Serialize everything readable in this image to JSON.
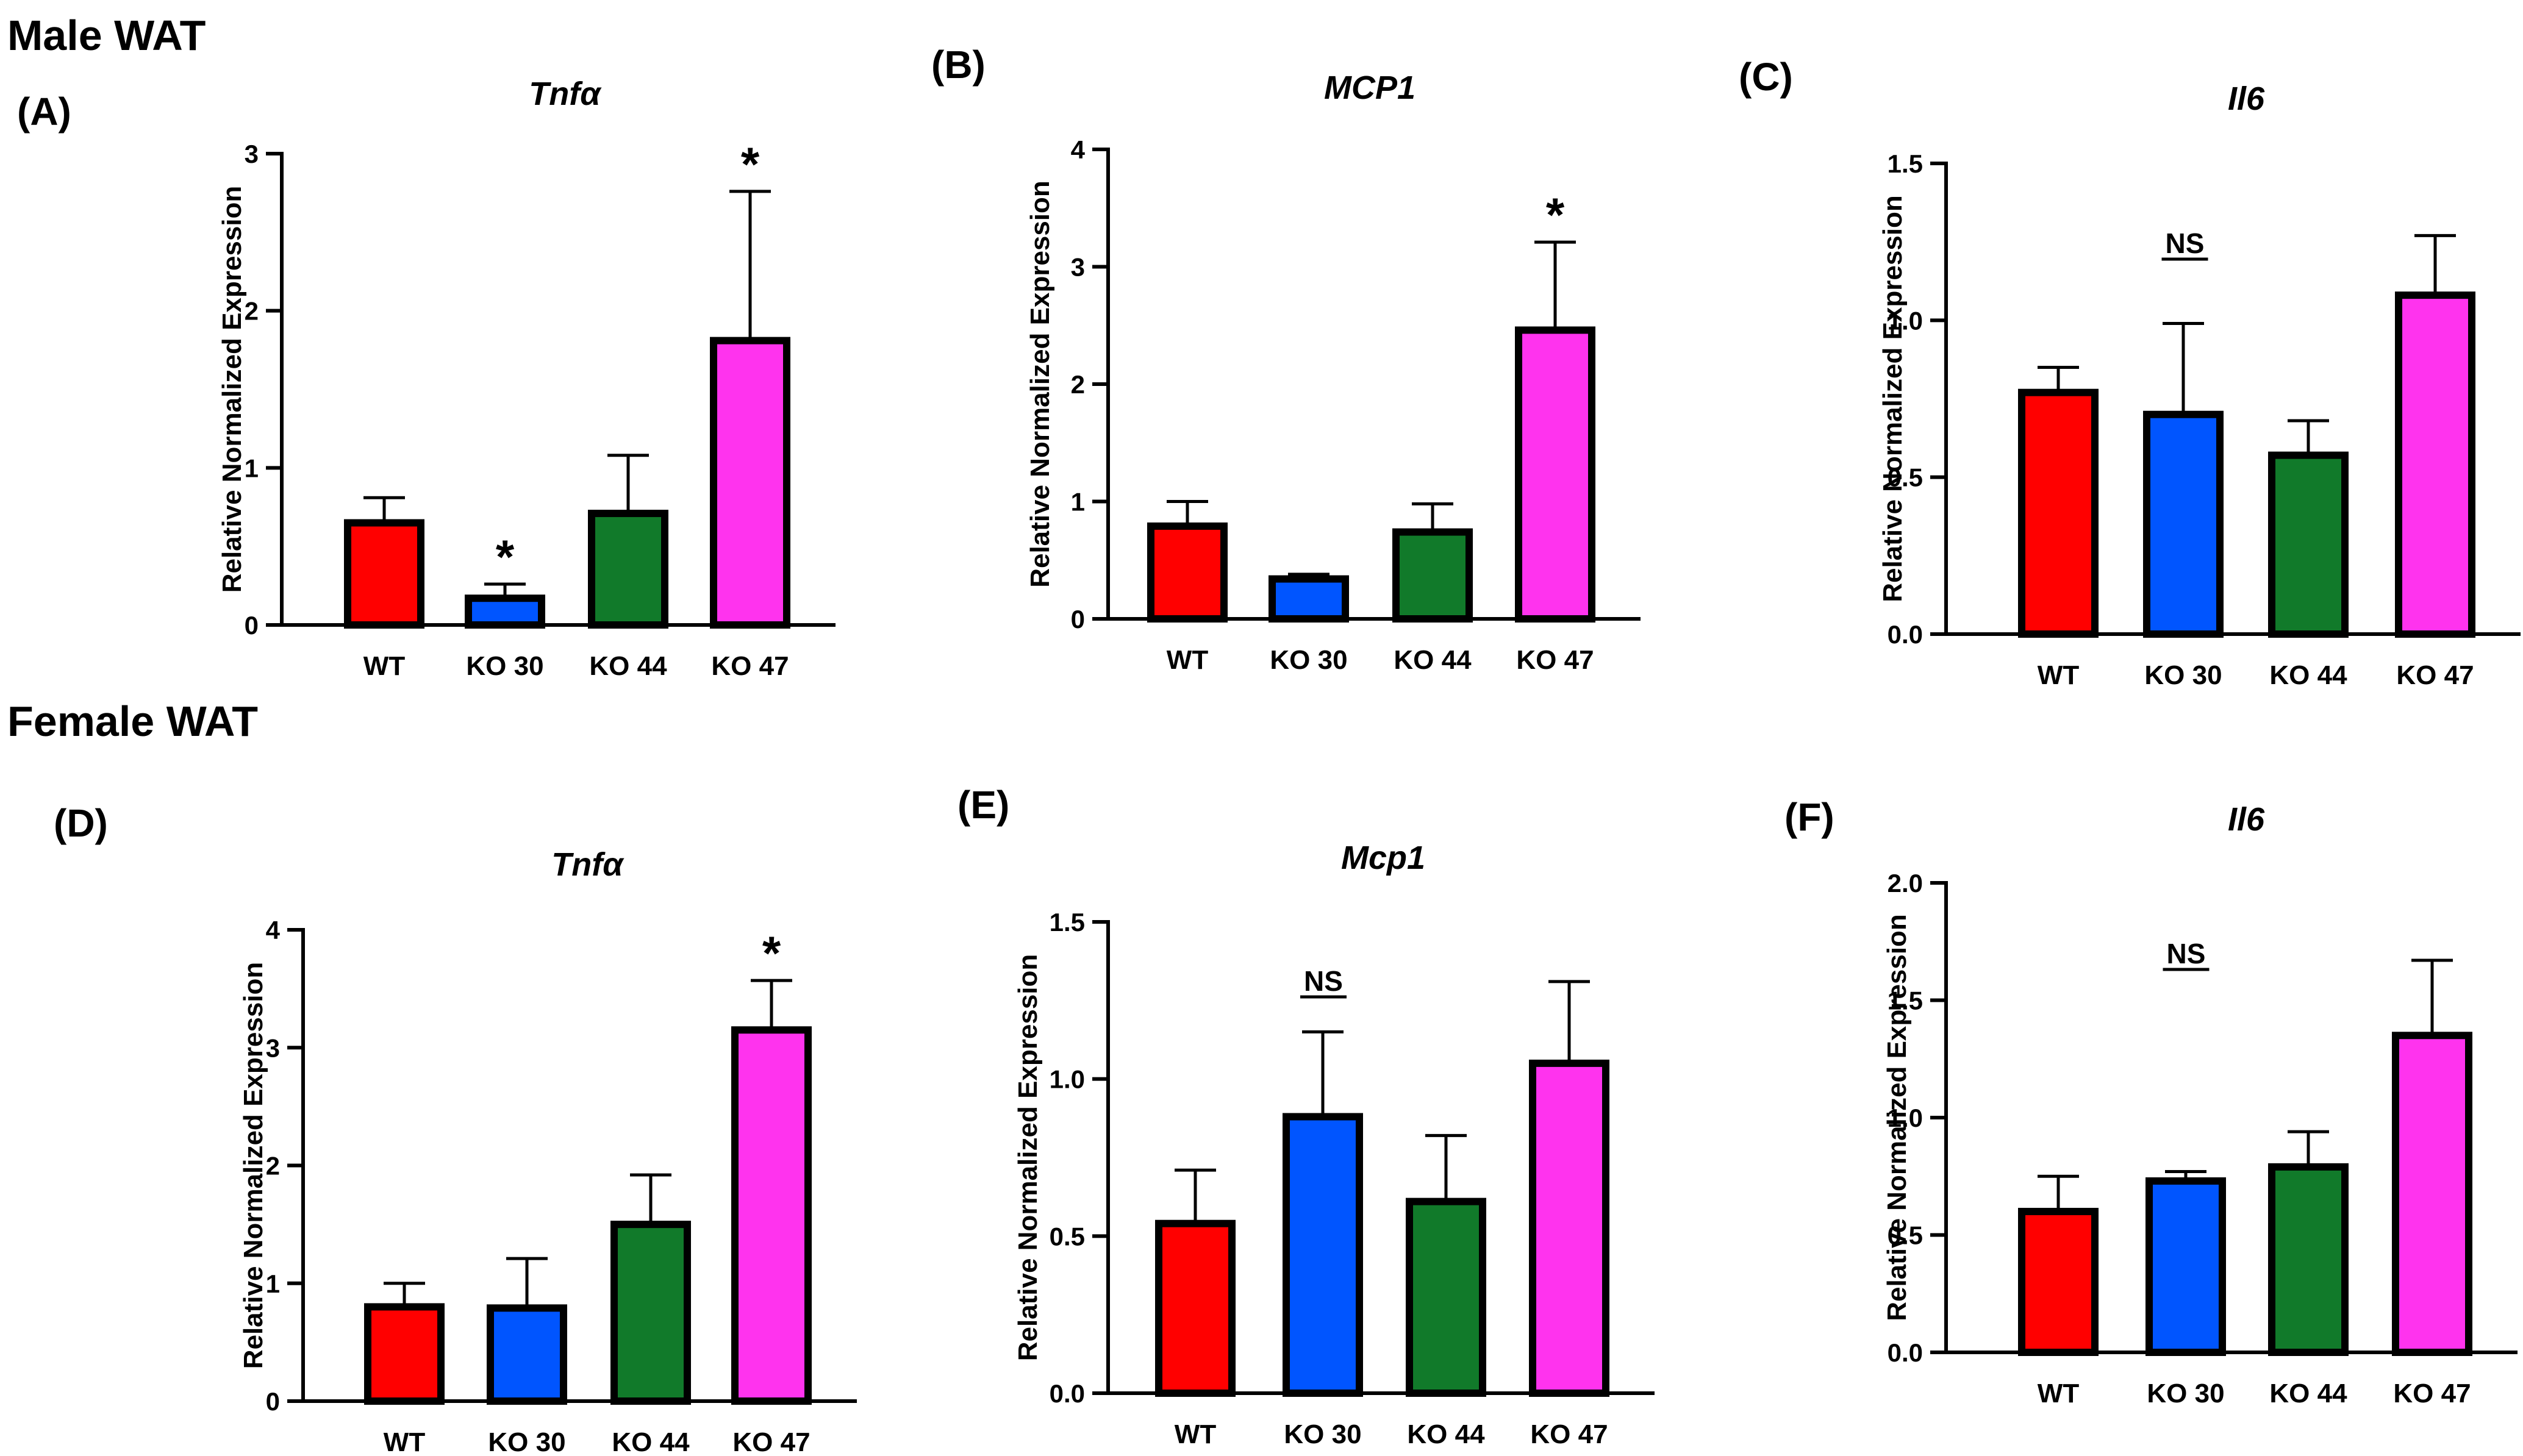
{
  "sections": {
    "male": "Male WAT",
    "female": "Female WAT"
  },
  "colors": {
    "WT": "#ff0000",
    "KO 30": "#0055ff",
    "KO 44": "#117a2a",
    "KO 47": "#ff33ee"
  },
  "chart_data": [
    {
      "id": "A",
      "label": "(A)",
      "type": "bar",
      "title": "Tnfα",
      "ylabel": "Relative Normalized Expression",
      "categories": [
        "WT",
        "KO 30",
        "KO 44",
        "KO 47"
      ],
      "values": [
        0.65,
        0.17,
        0.71,
        1.81
      ],
      "errors": [
        0.16,
        0.09,
        0.37,
        0.95
      ],
      "ylim": [
        0,
        3
      ],
      "yticks": [
        "0",
        "1",
        "2",
        "3"
      ],
      "annotations": [
        "",
        "*",
        "",
        "*"
      ]
    },
    {
      "id": "B",
      "label": "(B)",
      "type": "bar",
      "title": "MCP1",
      "ylabel": "Relative Normalized Expression",
      "categories": [
        "WT",
        "KO 30",
        "KO 44",
        "KO 47"
      ],
      "values": [
        0.79,
        0.34,
        0.74,
        2.46
      ],
      "errors": [
        0.21,
        0.04,
        0.24,
        0.75
      ],
      "ylim": [
        0,
        4
      ],
      "yticks": [
        "0",
        "1",
        "2",
        "3",
        "4"
      ],
      "annotations": [
        "",
        "",
        "",
        "*"
      ]
    },
    {
      "id": "C",
      "label": "(C)",
      "type": "bar",
      "title": "Il6",
      "ylabel": "Relative Normalized Expression",
      "categories": [
        "WT",
        "KO 30",
        "KO 44",
        "KO 47"
      ],
      "values": [
        0.77,
        0.7,
        0.57,
        1.08
      ],
      "errors": [
        0.08,
        0.29,
        0.11,
        0.19
      ],
      "ylim": [
        0,
        1.5
      ],
      "yticks": [
        "0.0",
        "0.5",
        "1.0",
        "1.5"
      ],
      "note": "NS"
    },
    {
      "id": "D",
      "label": "(D)",
      "type": "bar",
      "title": "Tnfα",
      "ylabel": "Relative Normalized Expression",
      "categories": [
        "WT",
        "KO 30",
        "KO 44",
        "KO 47"
      ],
      "values": [
        0.8,
        0.79,
        1.5,
        3.15
      ],
      "errors": [
        0.2,
        0.42,
        0.42,
        0.42
      ],
      "ylim": [
        0,
        4
      ],
      "yticks": [
        "0",
        "1",
        "2",
        "3",
        "4"
      ],
      "annotations": [
        "",
        "",
        "",
        "*"
      ]
    },
    {
      "id": "E",
      "label": "(E)",
      "type": "bar",
      "title": "Mcp1",
      "ylabel": "Relative Normalized Expression",
      "categories": [
        "WT",
        "KO 30",
        "KO 44",
        "KO 47"
      ],
      "values": [
        0.54,
        0.88,
        0.61,
        1.05
      ],
      "errors": [
        0.17,
        0.27,
        0.21,
        0.26
      ],
      "ylim": [
        0,
        1.5
      ],
      "yticks": [
        "0.0",
        "0.5",
        "1.0",
        "1.5"
      ],
      "note": "NS"
    },
    {
      "id": "F",
      "label": "(F)",
      "type": "bar",
      "title": "Il6",
      "ylabel": "Relative Normalized Expression",
      "categories": [
        "WT",
        "KO 30",
        "KO 44",
        "KO 47"
      ],
      "values": [
        0.6,
        0.73,
        0.79,
        1.35
      ],
      "errors": [
        0.15,
        0.04,
        0.15,
        0.32
      ],
      "ylim": [
        0,
        2.0
      ],
      "yticks": [
        "0.0",
        "0.5",
        "1.0",
        "1.5",
        "2.0"
      ],
      "note": "NS"
    }
  ]
}
